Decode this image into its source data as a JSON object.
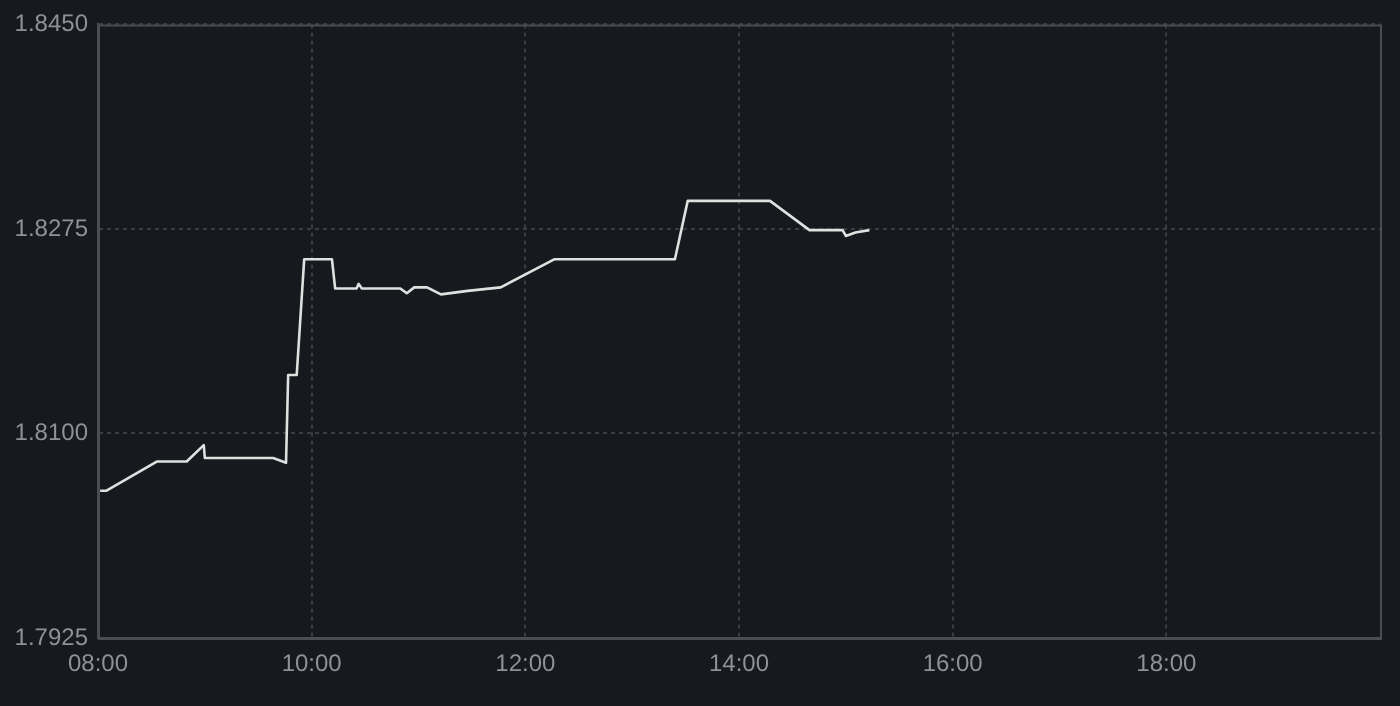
{
  "chart_data": {
    "type": "line",
    "xlim": [
      8,
      20
    ],
    "ylim": [
      1.7925,
      1.845
    ],
    "xticks": [
      {
        "value": 8,
        "label": "08:00"
      },
      {
        "value": 10,
        "label": "10:00"
      },
      {
        "value": 12,
        "label": "12:00"
      },
      {
        "value": 14,
        "label": "14:00"
      },
      {
        "value": 16,
        "label": "16:00"
      },
      {
        "value": 18,
        "label": "18:00"
      }
    ],
    "yticks": [
      {
        "value": 1.7925,
        "label": "1.7925"
      },
      {
        "value": 1.81,
        "label": "1.8100"
      },
      {
        "value": 1.8275,
        "label": "1.8275"
      },
      {
        "value": 1.845,
        "label": "1.8450"
      }
    ],
    "grid": true,
    "legend": false,
    "marker": "none",
    "line_style": "solid",
    "series": [
      {
        "color": "#e0e0e0",
        "x": [
          8.02,
          8.08,
          8.55,
          8.83,
          8.99,
          9.0,
          9.64,
          9.76,
          9.78,
          9.86,
          9.93,
          10.19,
          10.22,
          10.42,
          10.44,
          10.47,
          10.83,
          10.89,
          10.96,
          11.08,
          11.21,
          11.46,
          11.77,
          12.27,
          13.4,
          13.52,
          14.29,
          14.66,
          14.97,
          15.0,
          15.09,
          15.22
        ],
        "values": [
          1.8051,
          1.8051,
          1.8076,
          1.8076,
          1.809,
          1.8079,
          1.8079,
          1.8075,
          1.815,
          1.815,
          1.8249,
          1.8249,
          1.8224,
          1.8224,
          1.8228,
          1.8224,
          1.8224,
          1.822,
          1.8225,
          1.8225,
          1.8219,
          1.8222,
          1.8225,
          1.8249,
          1.8249,
          1.8299,
          1.8299,
          1.8274,
          1.8274,
          1.8269,
          1.8272,
          1.8274
        ]
      }
    ]
  }
}
